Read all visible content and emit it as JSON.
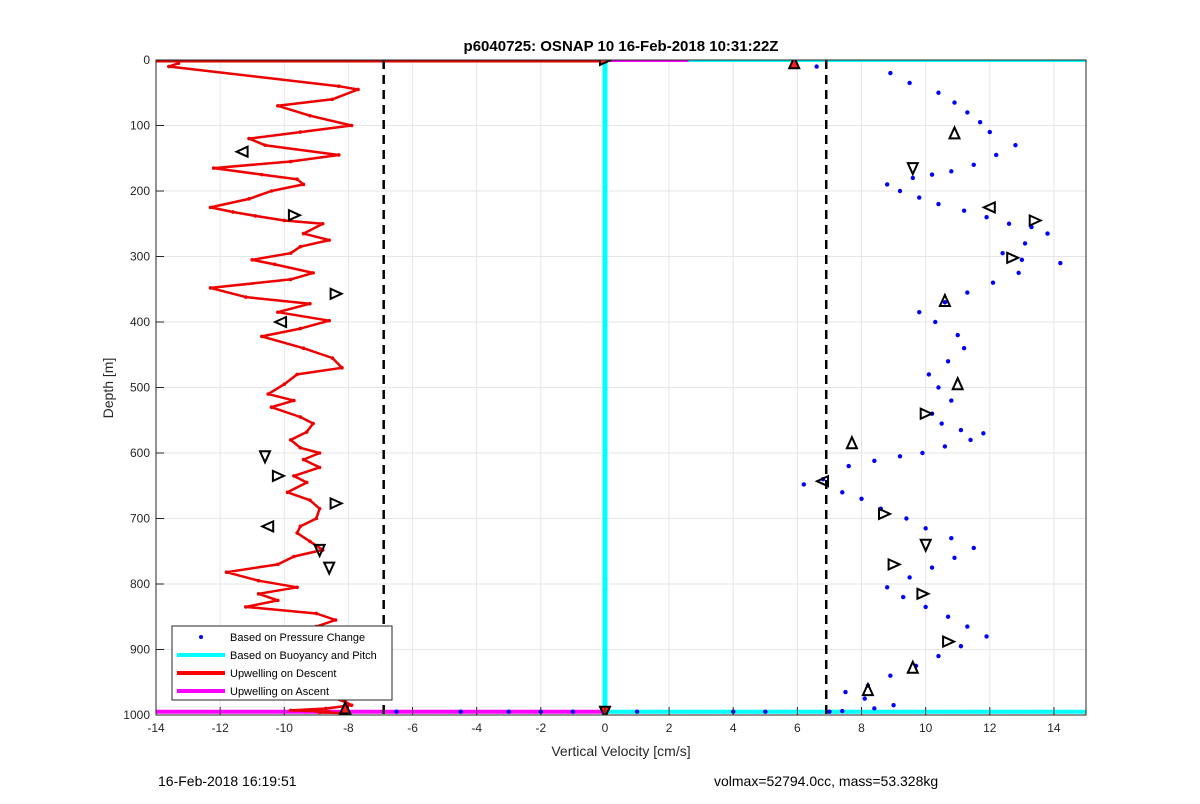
{
  "chart_data": {
    "type": "scatter",
    "title": "p6040725: OSNAP 10 16-Feb-2018 10:31:22Z",
    "xlabel": "Vertical Velocity [cm/s]",
    "ylabel": "Depth [m]",
    "xlim": [
      -14,
      15
    ],
    "ylim": [
      0,
      1000
    ],
    "y_reversed": true,
    "grid": true,
    "xticks": [
      -14,
      -12,
      -10,
      -8,
      -6,
      -4,
      -2,
      0,
      2,
      4,
      6,
      8,
      10,
      12,
      14
    ],
    "yticks": [
      0,
      100,
      200,
      300,
      400,
      500,
      600,
      700,
      800,
      900,
      1000
    ],
    "legend_position": "bottom-left",
    "legend": [
      {
        "label": "Based on Pressure Change",
        "color": "#0000ff",
        "style": "dot"
      },
      {
        "label": "Based on Buoyancy and Pitch",
        "color": "#00ffff",
        "style": "line"
      },
      {
        "label": "Upwelling on Descent",
        "color": "#ff0000",
        "style": "line"
      },
      {
        "label": "Upwelling on Ascent",
        "color": "#ff00ff",
        "style": "line"
      }
    ],
    "thresholds": [
      -6.9,
      6.9
    ],
    "series": [
      {
        "name": "Upwelling on Descent",
        "color": "#ee0000",
        "x": [
          -13.3,
          -13.6,
          -8.3,
          -7.7,
          -8.5,
          -10.2,
          -9.2,
          -7.9,
          -9.5,
          -11.1,
          -10.6,
          -8.3,
          -9.8,
          -12.2,
          -10.7,
          -9.6,
          -9.4,
          -10.4,
          -11.1,
          -12.3,
          -11.6,
          -10.9,
          -10.0,
          -8.8,
          -9.4,
          -8.6,
          -9.5,
          -9.8,
          -11.0,
          -10.3,
          -9.1,
          -9.8,
          -12.3,
          -11.2,
          -9.2,
          -10.2,
          -8.6,
          -9.5,
          -10.7,
          -9.4,
          -8.5,
          -8.2,
          -9.6,
          -10.0,
          -10.5,
          -9.7,
          -10.4,
          -9.5,
          -9.1,
          -9.3,
          -9.8,
          -9.5,
          -8.9,
          -9.4,
          -8.9,
          -9.7,
          -9.3,
          -9.9,
          -9.2,
          -8.9,
          -9.0,
          -9.5,
          -9.6,
          -9.2,
          -8.8,
          -9.7,
          -10.2,
          -11.8,
          -10.8,
          -9.6,
          -10.8,
          -10.2,
          -11.2,
          -9.0,
          -8.4,
          -9.0,
          -8.2,
          -9.1,
          -10.9,
          -10.0,
          -9.3,
          -7.8,
          -6.9,
          -9.4,
          -10.2,
          -9.1,
          -9.4,
          -8.4,
          -8.1,
          -7.9,
          -8.7,
          -9.8,
          -9.0,
          -8.6,
          -8.9,
          -8.1
        ],
        "y": [
          5,
          10,
          40,
          45,
          60,
          70,
          85,
          100,
          110,
          120,
          130,
          145,
          155,
          165,
          175,
          182,
          190,
          200,
          212,
          225,
          232,
          238,
          245,
          250,
          265,
          275,
          285,
          295,
          305,
          312,
          325,
          335,
          348,
          362,
          372,
          385,
          398,
          410,
          422,
          440,
          455,
          470,
          480,
          495,
          510,
          520,
          530,
          545,
          555,
          568,
          580,
          592,
          600,
          610,
          622,
          635,
          645,
          660,
          672,
          685,
          700,
          712,
          722,
          735,
          748,
          758,
          770,
          782,
          795,
          805,
          815,
          825,
          835,
          845,
          855,
          865,
          875,
          885,
          895,
          905,
          915,
          925,
          935,
          945,
          955,
          962,
          968,
          975,
          980,
          985,
          990,
          993,
          994,
          995,
          996,
          997
        ]
      },
      {
        "name": "Based on Pressure Change",
        "color": "#0000ff",
        "x": [
          5.9,
          6.6,
          8.9,
          9.5,
          10.4,
          10.9,
          11.3,
          11.7,
          12.0,
          12.8,
          12.2,
          11.5,
          10.8,
          10.2,
          9.6,
          8.8,
          9.2,
          9.8,
          10.4,
          11.2,
          11.9,
          12.6,
          13.3,
          13.8,
          13.1,
          12.4,
          13.0,
          14.2,
          12.9,
          12.1,
          11.3,
          10.6,
          9.8,
          10.3,
          11.0,
          11.2,
          10.7,
          10.1,
          10.4,
          10.8,
          10.2,
          10.5,
          11.1,
          11.8,
          11.4,
          10.6,
          9.9,
          9.2,
          8.4,
          7.6,
          6.8,
          6.2,
          7.4,
          8.0,
          8.6,
          9.4,
          10.0,
          10.8,
          11.5,
          10.9,
          10.2,
          9.5,
          8.8,
          9.3,
          10.0,
          10.7,
          11.3,
          11.9,
          11.1,
          10.4,
          9.7,
          8.9,
          8.2,
          7.5,
          8.1,
          9.0,
          8.4,
          7.4
        ],
        "y": [
          5,
          10,
          20,
          35,
          50,
          65,
          80,
          95,
          110,
          130,
          145,
          160,
          170,
          175,
          180,
          190,
          200,
          210,
          220,
          230,
          240,
          250,
          255,
          265,
          280,
          295,
          305,
          310,
          325,
          340,
          355,
          370,
          385,
          400,
          420,
          440,
          460,
          480,
          500,
          520,
          540,
          555,
          565,
          570,
          580,
          590,
          600,
          605,
          612,
          620,
          640,
          648,
          660,
          670,
          685,
          700,
          715,
          730,
          745,
          760,
          775,
          790,
          805,
          820,
          835,
          850,
          865,
          880,
          895,
          910,
          925,
          940,
          955,
          965,
          975,
          985,
          990,
          994
        ]
      }
    ],
    "cyan_line": {
      "name": "Based on Buoyancy and Pitch",
      "color": "#00ffff",
      "x": 0
    },
    "surface_points": {
      "x": [
        -6.5,
        -4.5,
        -3.0,
        -2.0,
        -1.0,
        1.0,
        4.0,
        5.0,
        7.0
      ],
      "y": [
        995,
        995,
        995,
        995,
        995,
        995,
        995,
        995,
        995
      ]
    },
    "markers": [
      {
        "x": -11.3,
        "y": 140,
        "dir": "left"
      },
      {
        "x": -9.7,
        "y": 237,
        "dir": "right"
      },
      {
        "x": -8.4,
        "y": 357,
        "dir": "right"
      },
      {
        "x": -10.1,
        "y": 400,
        "dir": "left"
      },
      {
        "x": -10.6,
        "y": 605,
        "dir": "down"
      },
      {
        "x": -10.2,
        "y": 635,
        "dir": "right"
      },
      {
        "x": -8.4,
        "y": 677,
        "dir": "right"
      },
      {
        "x": -10.5,
        "y": 712,
        "dir": "left"
      },
      {
        "x": -8.9,
        "y": 748,
        "dir": "down"
      },
      {
        "x": -8.6,
        "y": 775,
        "dir": "down"
      },
      {
        "x": -9.9,
        "y": 920,
        "dir": "left"
      },
      {
        "x": -9.5,
        "y": 966,
        "dir": "left"
      },
      {
        "x": -8.1,
        "y": 990,
        "dir": "up"
      },
      {
        "x": 0,
        "y": 0,
        "dir": "right"
      },
      {
        "x": 0,
        "y": 995,
        "dir": "down"
      },
      {
        "x": 5.9,
        "y": 5,
        "dir": "up"
      },
      {
        "x": 10.9,
        "y": 112,
        "dir": "up"
      },
      {
        "x": 9.6,
        "y": 165,
        "dir": "down"
      },
      {
        "x": 12.0,
        "y": 225,
        "dir": "left"
      },
      {
        "x": 13.4,
        "y": 245,
        "dir": "right"
      },
      {
        "x": 12.7,
        "y": 302,
        "dir": "right"
      },
      {
        "x": 10.6,
        "y": 368,
        "dir": "up"
      },
      {
        "x": 11.0,
        "y": 495,
        "dir": "up"
      },
      {
        "x": 10.0,
        "y": 540,
        "dir": "right"
      },
      {
        "x": 7.7,
        "y": 585,
        "dir": "up"
      },
      {
        "x": 6.8,
        "y": 643,
        "dir": "left"
      },
      {
        "x": 8.7,
        "y": 693,
        "dir": "right"
      },
      {
        "x": 10.0,
        "y": 740,
        "dir": "down"
      },
      {
        "x": 9.0,
        "y": 770,
        "dir": "right"
      },
      {
        "x": 9.9,
        "y": 815,
        "dir": "right"
      },
      {
        "x": 10.7,
        "y": 888,
        "dir": "right"
      },
      {
        "x": 9.6,
        "y": 928,
        "dir": "up"
      },
      {
        "x": 8.2,
        "y": 962,
        "dir": "up"
      }
    ]
  },
  "footer": {
    "timestamp": "16-Feb-2018 16:19:51",
    "summary": "volmax=52794.0cc, mass=53.328kg"
  }
}
